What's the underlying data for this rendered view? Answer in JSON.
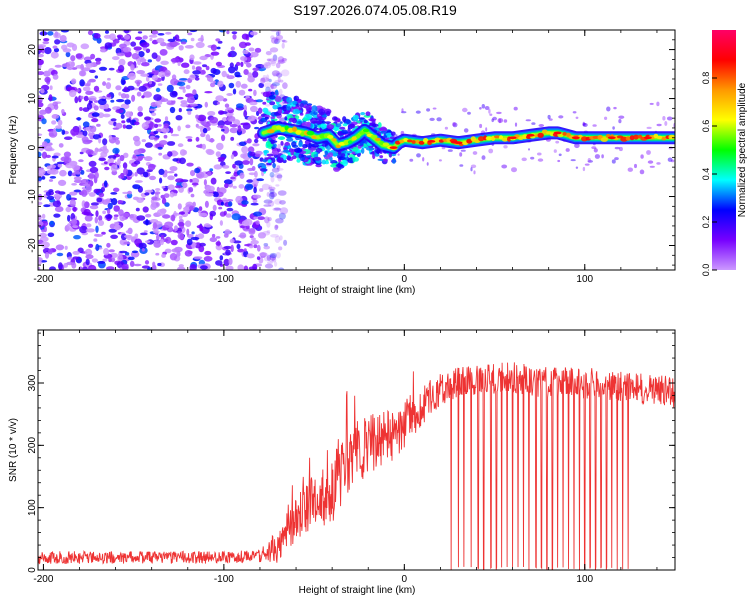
{
  "title": "S197.2026.074.05.08.R19",
  "chart_data": [
    {
      "type": "heatmap",
      "title": "S197.2026.074.05.08.R19",
      "xlabel": "Height of straight line (km)",
      "ylabel": "Frequency (Hz)",
      "xlim": [
        -203,
        150
      ],
      "ylim": [
        -25,
        24
      ],
      "xticks": [
        -200,
        -100,
        0,
        100
      ],
      "yticks": [
        20,
        10,
        0,
        -10,
        -20
      ],
      "colorbar": {
        "label": "Normalized spectral amplitude",
        "range": [
          0,
          1
        ],
        "ticks": [
          0,
          0.2,
          0.4,
          0.6,
          0.8
        ],
        "colormap": [
          "#cc99ff",
          "#7700ff",
          "#0000ff",
          "#00ffff",
          "#00ff00",
          "#ffff00",
          "#ff9900",
          "#ff0000",
          "#ff0066"
        ]
      },
      "regions": [
        {
          "name": "noise",
          "x_range": [
            -203,
            -78
          ],
          "freq_range": [
            -25,
            24
          ],
          "amplitude": [
            0.0,
            0.3
          ]
        },
        {
          "name": "transition",
          "x_range": [
            -78,
            -5
          ],
          "freq_range": [
            -6,
            12
          ],
          "amplitude": [
            0.1,
            0.5
          ]
        },
        {
          "name": "carrier",
          "x_range": [
            -5,
            150
          ],
          "freq_center": [
            1.0,
            3.0
          ],
          "amplitude": [
            0.3,
            0.95
          ]
        }
      ],
      "center_line": [
        [
          -78,
          3
        ],
        [
          -70,
          4
        ],
        [
          -62,
          3.5
        ],
        [
          -55,
          3
        ],
        [
          -48,
          2
        ],
        [
          -42,
          2.5
        ],
        [
          -37,
          0.5
        ],
        [
          -32,
          1
        ],
        [
          -27,
          2
        ],
        [
          -22,
          3.5
        ],
        [
          -17,
          2
        ],
        [
          -12,
          0.5
        ],
        [
          -6,
          0
        ],
        [
          -3,
          1
        ],
        [
          0,
          1.5
        ],
        [
          10,
          1
        ],
        [
          20,
          1.5
        ],
        [
          30,
          1
        ],
        [
          40,
          1.5
        ],
        [
          50,
          2
        ],
        [
          60,
          2
        ],
        [
          70,
          2.5
        ],
        [
          80,
          3
        ],
        [
          85,
          3
        ],
        [
          90,
          2.5
        ],
        [
          95,
          2
        ],
        [
          100,
          2
        ],
        [
          110,
          2
        ],
        [
          120,
          2
        ],
        [
          130,
          2
        ],
        [
          140,
          2
        ],
        [
          150,
          2
        ]
      ]
    },
    {
      "type": "line",
      "xlabel": "Height of straight line (km)",
      "ylabel": "SNR (10 * v/v)",
      "xlim": [
        -203,
        150
      ],
      "ylim": [
        0,
        385
      ],
      "xticks": [
        -200,
        -100,
        0,
        100
      ],
      "yticks": [
        0,
        100,
        200,
        300
      ],
      "series": [
        {
          "name": "SNR",
          "color": "#ee3333",
          "trend": [
            [
              -203,
              20
            ],
            [
              -150,
              20
            ],
            [
              -100,
              20
            ],
            [
              -80,
              22
            ],
            [
              -70,
              40
            ],
            [
              -60,
              80
            ],
            [
              -50,
              110
            ],
            [
              -40,
              130
            ],
            [
              -30,
              175
            ],
            [
              -20,
              200
            ],
            [
              -10,
              210
            ],
            [
              0,
              230
            ],
            [
              10,
              265
            ],
            [
              20,
              290
            ],
            [
              30,
              300
            ],
            [
              40,
              305
            ],
            [
              60,
              310
            ],
            [
              80,
              300
            ],
            [
              100,
              300
            ],
            [
              120,
              295
            ],
            [
              150,
              285
            ]
          ],
          "noise_amplitude": [
            [
              -203,
              10
            ],
            [
              -80,
              10
            ],
            [
              -70,
              30
            ],
            [
              -40,
              55
            ],
            [
              -10,
              45
            ],
            [
              20,
              25
            ],
            [
              150,
              25
            ]
          ],
          "dropouts_x": [
            26,
            30,
            33,
            37,
            41,
            44,
            48,
            51,
            54,
            57,
            60,
            63,
            66,
            69,
            73,
            76,
            79,
            82,
            85,
            88,
            91,
            94,
            97,
            100,
            103,
            106,
            109,
            112,
            115,
            118,
            121,
            124
          ]
        }
      ]
    }
  ]
}
